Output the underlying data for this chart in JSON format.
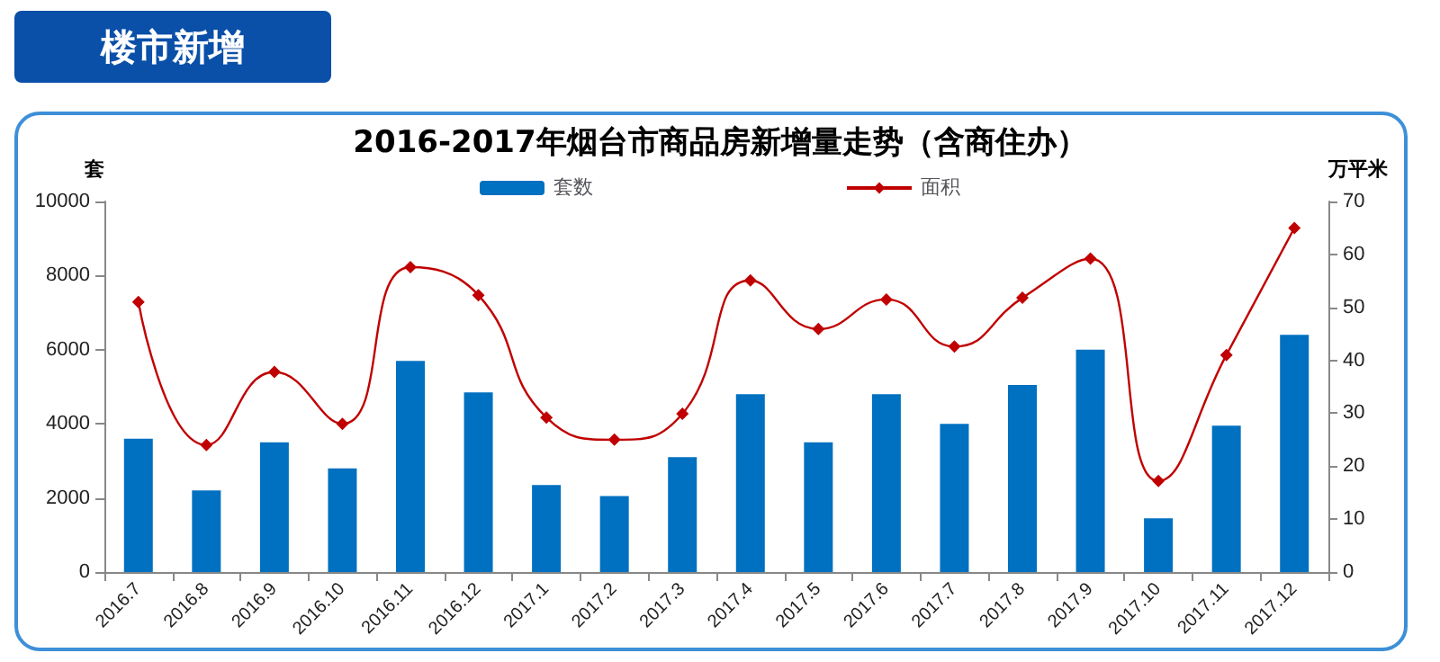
{
  "chart_data": {
    "type": "bar",
    "title": "2016-2017年烟台市商品房新增量走势（含商住办）",
    "annotations": [
      "楼市新增"
    ],
    "categories": [
      "2016.7",
      "2016.8",
      "2016.9",
      "2016.10",
      "2016.11",
      "2016.12",
      "2017.1",
      "2017.2",
      "2017.3",
      "2017.4",
      "2017.5",
      "2017.6",
      "2017.7",
      "2017.8",
      "2017.9",
      "2017.10",
      "2017.11",
      "2017.12"
    ],
    "series": [
      {
        "name": "套数",
        "color": "#0070c0",
        "values": [
          3600,
          2200,
          3500,
          2800,
          5700,
          4850,
          2350,
          2050,
          3100,
          4800,
          3500,
          4800,
          4000,
          5050,
          6000,
          1450,
          3950,
          6400
        ]
      },
      {
        "name": "面积",
        "type": "line",
        "axis": "y2",
        "color": "#c00000",
        "marker": "diamond",
        "values": [
          51,
          24,
          37.8,
          28,
          57.6,
          52.3,
          29.2,
          25,
          29.9,
          55.1,
          45.9,
          51.5,
          42.6,
          51.8,
          59.2,
          17.2,
          41,
          65
        ]
      }
    ],
    "ylabel": "套",
    "y2label": "万平米",
    "ylim": [
      0,
      10000
    ],
    "yticks": [
      0,
      2000,
      4000,
      6000,
      8000,
      10000
    ],
    "y2lim": [
      0,
      70
    ],
    "y2ticks": [
      0,
      10,
      20,
      30,
      40,
      50,
      60,
      70
    ],
    "grid": false,
    "legend": "top"
  }
}
